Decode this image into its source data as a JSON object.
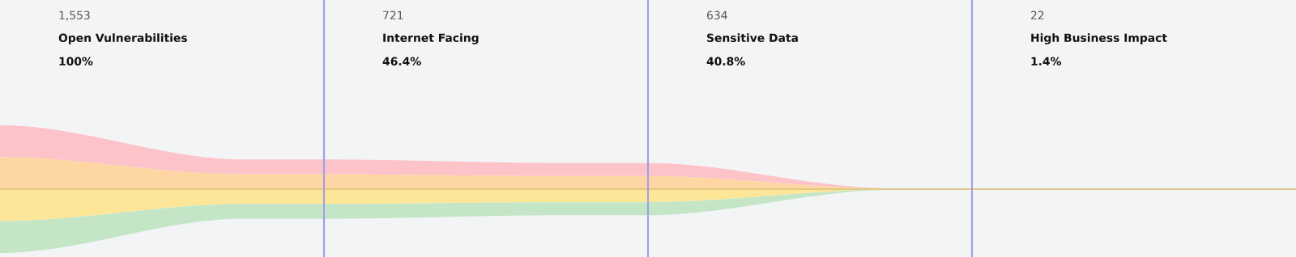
{
  "chart_data": {
    "type": "other",
    "categories": [
      "Open Vulnerabilities",
      "Internet Facing",
      "Sensitive Data",
      "High Business Impact"
    ],
    "values": [
      1553,
      721,
      634,
      22
    ],
    "value_labels": [
      "1,553",
      "721",
      "634",
      "22"
    ],
    "annotations": [
      "100%",
      "46.4%",
      "40.8%",
      "1.4%"
    ],
    "colors": [
      "#fcc3c8",
      "#fed6a4",
      "#fee699",
      "#c4e6c6"
    ]
  }
}
